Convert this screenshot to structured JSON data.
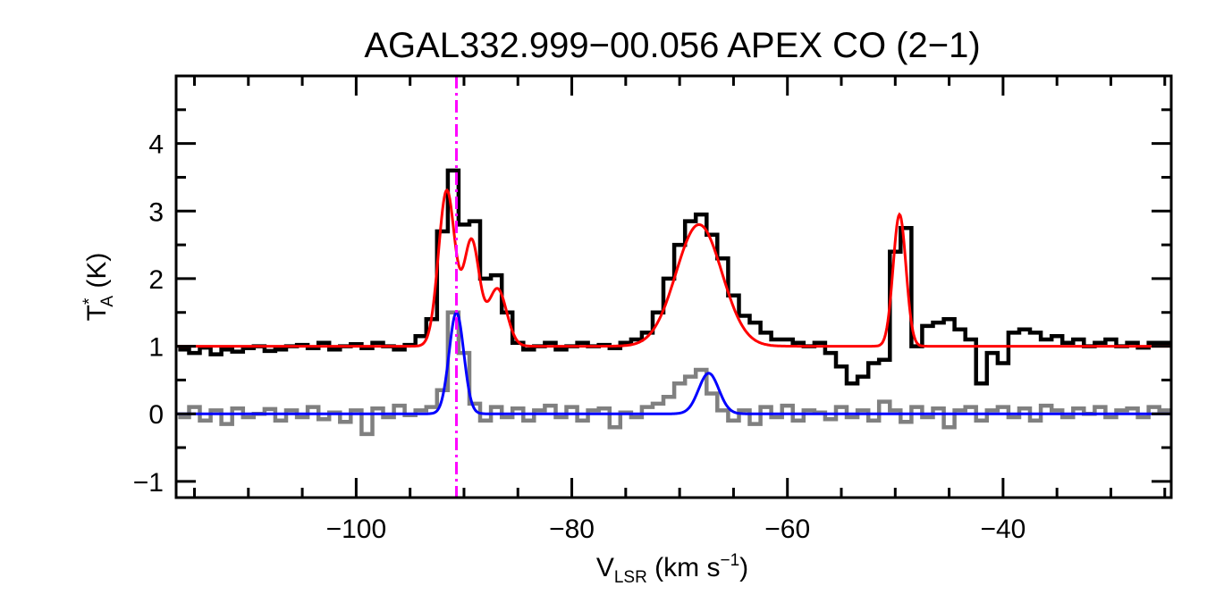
{
  "chart_data": {
    "type": "line",
    "title": "AGAL332.999−00.056  APEX CO (2−1)",
    "xlabel": {
      "main": "V",
      "sub": "LSR",
      "rest": " (km s",
      "sup": "−1",
      "end": ")"
    },
    "ylabel": {
      "main": "T",
      "sup": "*",
      "sub": "A",
      "rest": " (K)"
    },
    "xlim": [
      -116.7,
      -24.4
    ],
    "ylim": [
      -1.24,
      5.0
    ],
    "xticks": [
      -100,
      -80,
      -60,
      -40
    ],
    "xtick_labels": [
      "−100",
      "−80",
      "−60",
      "−40"
    ],
    "yticks": [
      -1,
      0,
      1,
      2,
      3,
      4
    ],
    "ytick_labels": [
      "−1",
      "0",
      "1",
      "2",
      "3",
      "4"
    ],
    "grid": false,
    "x_start": -116,
    "channel_width": 1,
    "series": [
      {
        "role": "spectrum",
        "color": "#000000",
        "values": [
          0.95,
          0.9,
          0.98,
          0.88,
          0.95,
          0.92,
          0.97,
          1.0,
          0.93,
          0.95,
          1.0,
          1.02,
          0.97,
          1.05,
          0.95,
          1.0,
          1.03,
          0.97,
          1.05,
          1.0,
          0.95,
          1.02,
          1.15,
          1.4,
          2.7,
          3.6,
          2.8,
          2.85,
          2.0,
          2.05,
          1.5,
          1.05,
          0.95,
          1.0,
          1.05,
          0.95,
          1.0,
          1.05,
          1.0,
          1.02,
          0.97,
          1.05,
          1.1,
          1.2,
          1.5,
          2.0,
          2.5,
          2.85,
          2.95,
          2.65,
          2.3,
          1.75,
          1.45,
          1.35,
          1.2,
          1.1,
          1.1,
          1.05,
          1.0,
          1.05,
          0.9,
          0.7,
          0.45,
          0.55,
          0.75,
          0.8,
          2.4,
          2.75,
          1.0,
          1.3,
          1.35,
          1.4,
          1.25,
          1.1,
          0.45,
          0.9,
          0.75,
          1.2,
          1.25,
          1.2,
          1.1,
          1.15,
          1.05,
          1.1,
          1.0,
          1.05,
          1.1,
          1.0,
          1.05,
          0.98,
          1.05,
          1.05
        ]
      },
      {
        "role": "residual",
        "color": "#808080",
        "values": [
          -0.05,
          0.1,
          -0.1,
          0.05,
          -0.15,
          0.08,
          -0.05,
          0.0,
          0.07,
          -0.1,
          0.05,
          -0.05,
          0.1,
          -0.08,
          0.02,
          -0.12,
          0.05,
          -0.3,
          0.08,
          -0.05,
          0.12,
          -0.02,
          0.05,
          0.1,
          0.35,
          1.5,
          0.9,
          0.15,
          -0.1,
          0.1,
          -0.05,
          0.08,
          -0.1,
          0.05,
          0.12,
          -0.05,
          0.1,
          -0.1,
          0.05,
          0.08,
          -0.2,
          0.02,
          -0.05,
          0.1,
          0.15,
          0.25,
          0.45,
          0.55,
          0.65,
          0.3,
          0.05,
          -0.1,
          0.05,
          -0.15,
          0.1,
          -0.05,
          0.12,
          -0.1,
          0.05,
          0.02,
          -0.08,
          0.1,
          -0.05,
          0.05,
          -0.1,
          0.18,
          0.05,
          -0.12,
          0.1,
          -0.05,
          0.08,
          -0.2,
          0.05,
          0.1,
          -0.1,
          0.05,
          0.1,
          -0.05,
          0.08,
          -0.1,
          0.12,
          0.05,
          -0.05,
          0.08,
          0.0,
          0.1,
          -0.05,
          0.05,
          0.08,
          -0.05,
          0.1,
          0.05
        ]
      }
    ],
    "fits": [
      {
        "role": "total-fit",
        "color": "#ff0000",
        "baseline": 1.0,
        "components": [
          {
            "amplitude": 2.3,
            "center": -91.6,
            "fwhm": 1.8
          },
          {
            "amplitude": 1.55,
            "center": -89.3,
            "fwhm": 1.7
          },
          {
            "amplitude": 0.85,
            "center": -86.9,
            "fwhm": 2.0
          },
          {
            "amplitude": 1.8,
            "center": -68.2,
            "fwhm": 5.0
          },
          {
            "amplitude": 1.95,
            "center": -49.6,
            "fwhm": 1.4
          }
        ]
      },
      {
        "role": "residual-fit",
        "color": "#0000ff",
        "baseline": 0.0,
        "components": [
          {
            "amplitude": 1.5,
            "center": -90.7,
            "fwhm": 1.6
          },
          {
            "amplitude": 0.6,
            "center": -67.3,
            "fwhm": 2.2
          }
        ]
      }
    ],
    "marker_line": {
      "x": -90.7,
      "color": "#ff00ff",
      "style": "dash-dot"
    }
  }
}
